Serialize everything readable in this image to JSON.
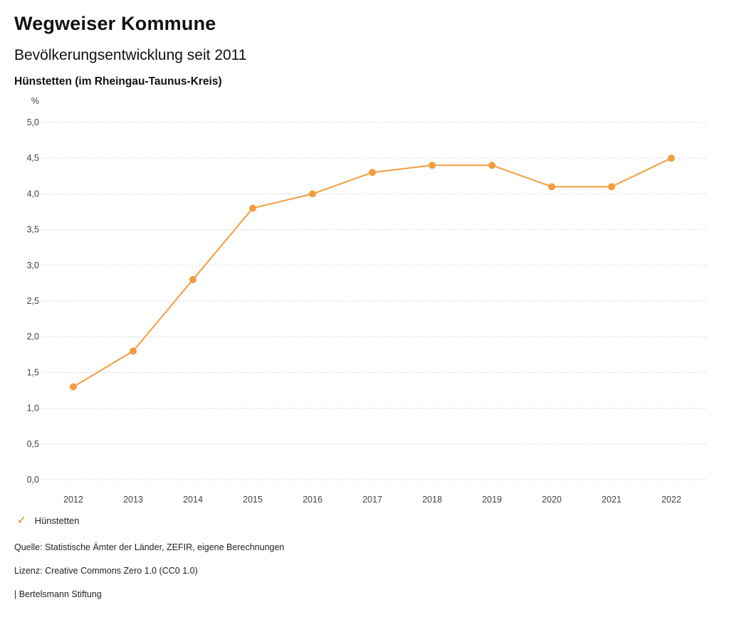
{
  "header": {
    "title": "Wegweiser Kommune",
    "subtitle": "Bevölkerungsentwicklung seit 2011",
    "location": "Hünstetten (im Rheingau-Taunus-Kreis)"
  },
  "chart_data": {
    "type": "line",
    "title": "Bevölkerungsentwicklung seit 2011",
    "unit_label": "%",
    "categories": [
      "2012",
      "2013",
      "2014",
      "2015",
      "2016",
      "2017",
      "2018",
      "2019",
      "2020",
      "2021",
      "2022"
    ],
    "series": [
      {
        "name": "Hünstetten",
        "values": [
          1.3,
          1.8,
          2.8,
          3.8,
          4.0,
          4.3,
          4.4,
          4.4,
          4.1,
          4.1,
          4.5
        ],
        "color": "#f39d3f"
      }
    ],
    "ylim": [
      0,
      5
    ],
    "y_ticks": [
      {
        "value": 0.0,
        "label": "0,0"
      },
      {
        "value": 0.5,
        "label": "0,5"
      },
      {
        "value": 1.0,
        "label": "1,0"
      },
      {
        "value": 1.5,
        "label": "1,5"
      },
      {
        "value": 2.0,
        "label": "2,0"
      },
      {
        "value": 2.5,
        "label": "2,5"
      },
      {
        "value": 3.0,
        "label": "3,0"
      },
      {
        "value": 3.5,
        "label": "3,5"
      },
      {
        "value": 4.0,
        "label": "4,0"
      },
      {
        "value": 4.5,
        "label": "4,5"
      },
      {
        "value": 5.0,
        "label": "5,0"
      }
    ],
    "grid": "horizontal-dotted",
    "legend_position": "bottom-left"
  },
  "legend": {
    "marker": "✓",
    "label": "Hünstetten",
    "color": "#f39d3f"
  },
  "footer": {
    "source": "Quelle: Statistische Ämter der Länder, ZEFIR, eigene Berechnungen",
    "license": "Lizenz: Creative Commons Zero 1.0 (CC0 1.0)",
    "attribution": "| Bertelsmann Stiftung"
  },
  "colors": {
    "accent": "#f39d3f",
    "gridline": "#c6c6c6",
    "axis_text": "#444444"
  }
}
